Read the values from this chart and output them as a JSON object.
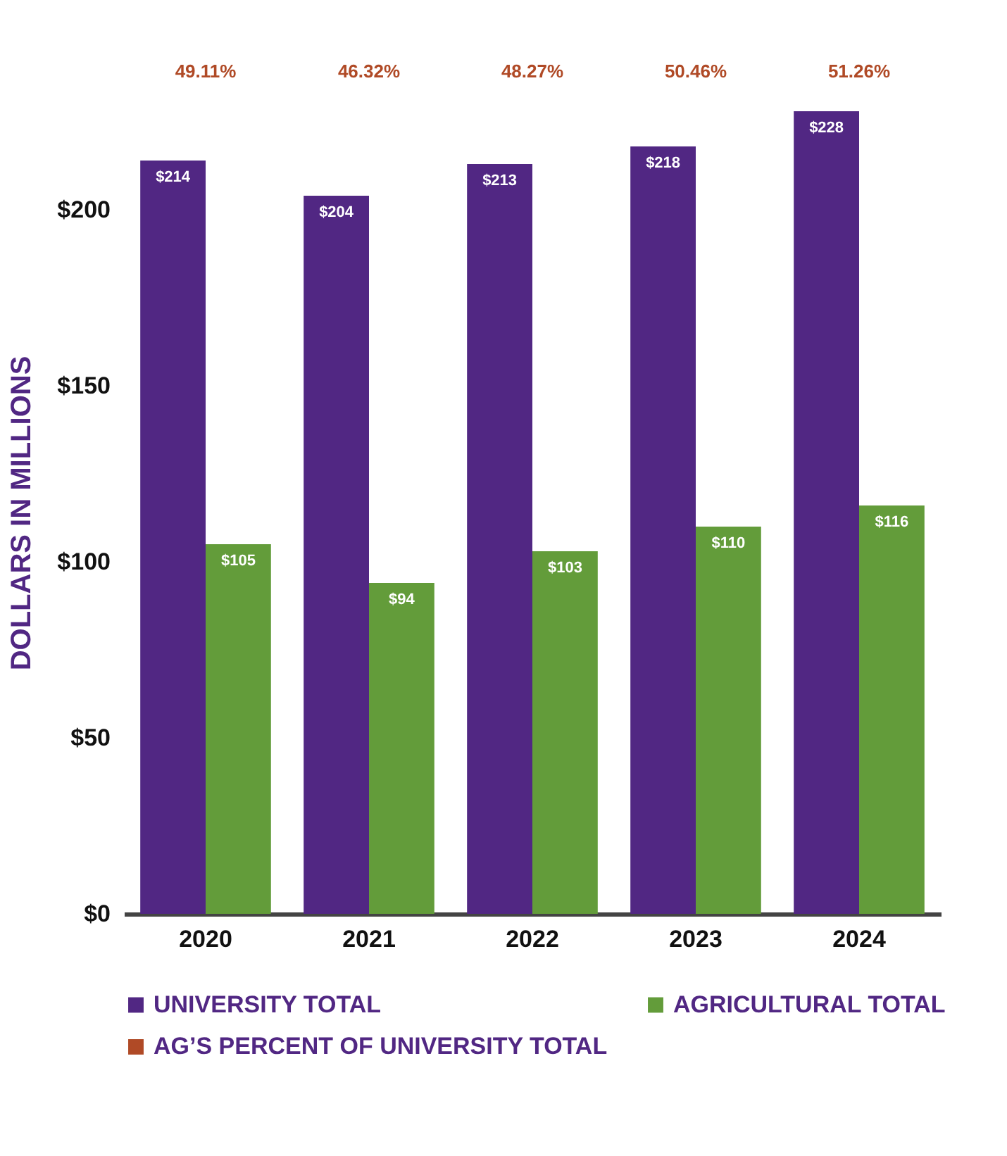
{
  "chart_data": {
    "type": "bar",
    "ylabel": "DOLLARS IN MILLIONS",
    "categories": [
      "2020",
      "2021",
      "2022",
      "2023",
      "2024"
    ],
    "series": [
      {
        "name": "UNIVERSITY TOTAL",
        "color": "#512783",
        "values": [
          214,
          204,
          213,
          218,
          228
        ],
        "value_labels": [
          "$214",
          "$204",
          "$213",
          "$218",
          "$228"
        ]
      },
      {
        "name": "AGRICULTURAL TOTAL",
        "color": "#639c3a",
        "values": [
          105,
          94,
          103,
          110,
          116
        ],
        "value_labels": [
          "$105",
          "$94",
          "$103",
          "$110",
          "$116"
        ]
      },
      {
        "name": "AG’S PERCENT OF UNIVERSITY TOTAL",
        "color": "#b04a26",
        "type": "scatter",
        "values": [
          null,
          null,
          null,
          null,
          null
        ],
        "value_labels": [
          "49.11%",
          "46.32%",
          "48.27%",
          "50.46%",
          "51.26%"
        ]
      }
    ],
    "ylim": [
      0,
      228
    ],
    "yticks": [
      {
        "value": 0,
        "label": "$0"
      },
      {
        "value": 50,
        "label": "$50"
      },
      {
        "value": 100,
        "label": "$100"
      },
      {
        "value": 150,
        "label": "$150"
      },
      {
        "value": 200,
        "label": "$200"
      }
    ],
    "grid": false,
    "legend": "bottom"
  }
}
